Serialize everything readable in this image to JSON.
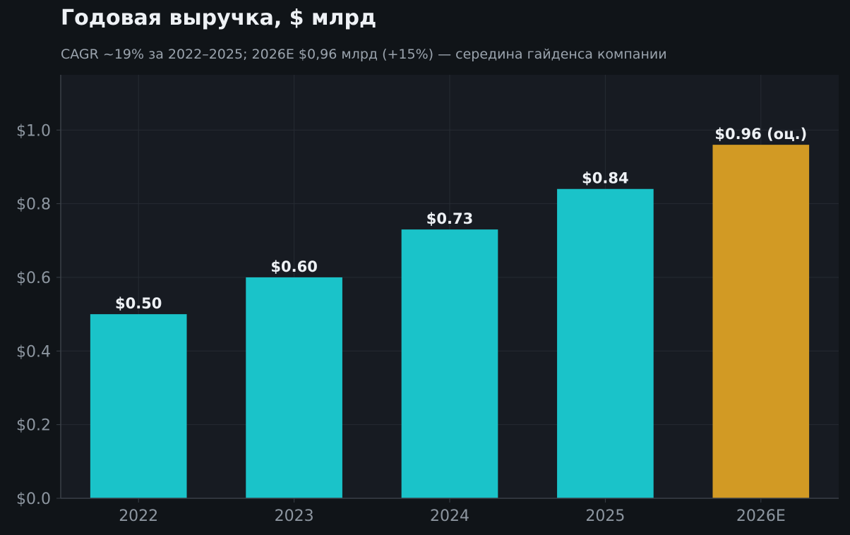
{
  "chart_data": {
    "type": "bar",
    "title": "Годовая выручка, $ млрд",
    "subtitle": "CAGR ~19% за 2022–2025; 2026E $0,96 млрд (+15%) — середина гайденса компании",
    "categories": [
      "2022",
      "2023",
      "2024",
      "2025",
      "2026E"
    ],
    "values": [
      0.5,
      0.6,
      0.73,
      0.84,
      0.96
    ],
    "data_labels": [
      "$0.50",
      "$0.60",
      "$0.73",
      "$0.84",
      "$0.96 (оц.)"
    ],
    "bar_colors": [
      "#1ac3c9",
      "#1ac3c9",
      "#1ac3c9",
      "#1ac3c9",
      "#d29a24"
    ],
    "ylim": [
      0,
      1.15
    ],
    "yticks": [
      0.0,
      0.2,
      0.4,
      0.6,
      0.8,
      1.0
    ],
    "ytick_labels": [
      "$0.0",
      "$0.2",
      "$0.4",
      "$0.6",
      "$0.8",
      "$1.0"
    ],
    "xlabel": "",
    "ylabel": "",
    "grid": true,
    "colors": {
      "background": "#101418",
      "plot_background": "#171b22",
      "grid": "#262b33",
      "axis": "#3a4048",
      "actual_bar": "#1ac3c9",
      "estimate_bar": "#d29a24"
    }
  }
}
